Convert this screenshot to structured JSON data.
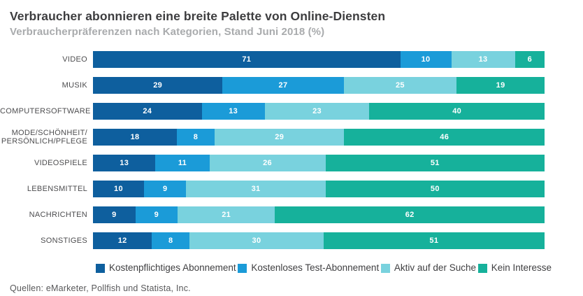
{
  "header": {
    "title": "Verbraucher abonnieren eine breite Palette von Online-Diensten",
    "subtitle": "Verbraucherpräferenzen nach Kategorien, Stand Juni 2018 (%)"
  },
  "colors": {
    "paid_subscription": "#0e5f9e",
    "free_trial": "#1b9bd8",
    "actively_searching": "#79d2de",
    "no_interest": "#16b19b"
  },
  "chart_data": {
    "type": "bar",
    "orientation": "horizontal",
    "stacked": true,
    "normalized_to_100": true,
    "unit": "%",
    "grid": false,
    "legend_position": "bottom",
    "value_labels": "inside-white",
    "title": "Verbraucher abonnieren eine breite Palette von Online-Diensten",
    "subtitle": "Verbraucherpräferenzen nach Kategorien, Stand Juni 2018 (%)",
    "categories": [
      "VIDEO",
      "MUSIK",
      "COMPUTERSOFTWARE",
      "MODE/SCHÖNHEIT/\nPERSÖNLICH/PFLEGE",
      "VIDEOSPIELE",
      "LEBENSMITTEL",
      "NACHRICHTEN",
      "SONSTIGES"
    ],
    "series": [
      {
        "name": "Kostenpflichtiges Abonnement",
        "color": "#0e5f9e",
        "values": [
          71,
          29,
          24,
          18,
          13,
          10,
          9,
          12
        ]
      },
      {
        "name": "Kostenloses Test-Abonnement",
        "color": "#1b9bd8",
        "values": [
          10,
          27,
          13,
          8,
          11,
          9,
          9,
          8
        ]
      },
      {
        "name": "Aktiv auf der Suche",
        "color": "#79d2de",
        "values": [
          13,
          25,
          23,
          29,
          26,
          31,
          21,
          30
        ]
      },
      {
        "name": "Kein Interesse",
        "color": "#16b19b",
        "values": [
          6,
          19,
          40,
          46,
          51,
          50,
          62,
          51
        ]
      }
    ]
  },
  "footer": {
    "source": "Quellen: eMarketer, Pollfish und Statista, Inc."
  }
}
